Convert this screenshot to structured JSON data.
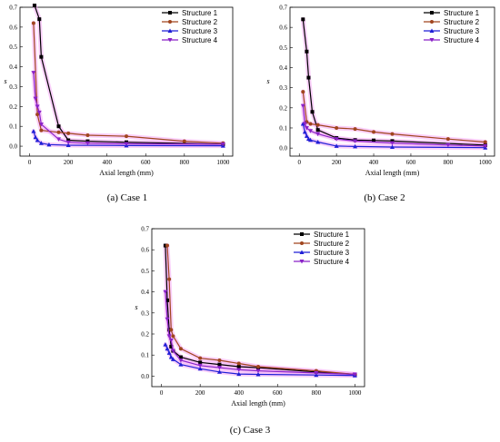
{
  "series_colors": [
    "#000000",
    "#a0451e",
    "#1f1fd6",
    "#8a22c8"
  ],
  "series_markers": [
    "square",
    "circle",
    "triangle-up",
    "triangle-down"
  ],
  "band_color": "#f6a8f6",
  "chart_data": [
    {
      "type": "line",
      "caption": "(a) Case 1",
      "xlabel": "Axial length (mm)",
      "ylabel": "s",
      "xlim": [
        -50,
        1050
      ],
      "ylim": [
        -0.05,
        0.7
      ],
      "xticks": [
        0,
        200,
        400,
        600,
        800,
        1000
      ],
      "yticks": [
        0.0,
        0.1,
        0.2,
        0.3,
        0.4,
        0.5,
        0.6,
        0.7
      ],
      "ytick_labels": [
        "0.0",
        "0.1",
        "0.2",
        "0.3",
        "0.4",
        "0.5",
        "0.6",
        "0.7"
      ],
      "legend_position": "top-right",
      "series": [
        {
          "name": "Structure 1",
          "x": [
            25,
            50,
            60,
            150,
            200,
            300,
            500,
            1000
          ],
          "y": [
            0.71,
            0.64,
            0.45,
            0.1,
            0.03,
            0.025,
            0.02,
            0.01
          ]
        },
        {
          "name": "Structure 2",
          "x": [
            20,
            40,
            60,
            150,
            200,
            300,
            500,
            800,
            1000
          ],
          "y": [
            0.62,
            0.16,
            0.08,
            0.07,
            0.065,
            0.055,
            0.05,
            0.025,
            0.015
          ]
        },
        {
          "name": "Structure 3",
          "x": [
            20,
            30,
            40,
            60,
            100,
            200,
            500,
            1000
          ],
          "y": [
            0.075,
            0.045,
            0.03,
            0.015,
            0.008,
            0.005,
            0.003,
            0.002
          ]
        },
        {
          "name": "Structure 4",
          "x": [
            20,
            30,
            40,
            50,
            60,
            150,
            200,
            300,
            500,
            1000
          ],
          "y": [
            0.37,
            0.24,
            0.2,
            0.17,
            0.11,
            0.035,
            0.02,
            0.015,
            0.012,
            0.01
          ]
        }
      ]
    },
    {
      "type": "line",
      "caption": "(b) Case 2",
      "xlabel": "Axial length (mm)",
      "ylabel": "s",
      "xlim": [
        -50,
        1050
      ],
      "ylim": [
        -0.04,
        0.7
      ],
      "xticks": [
        0,
        200,
        400,
        600,
        800,
        1000
      ],
      "yticks": [
        0.0,
        0.1,
        0.2,
        0.3,
        0.4,
        0.5,
        0.6,
        0.7
      ],
      "ytick_labels": [
        "0.0",
        "0.1",
        "0.2",
        "0.3",
        "0.4",
        "0.5",
        "0.6",
        "0.7"
      ],
      "legend_position": "top-right",
      "series": [
        {
          "name": "Structure 1",
          "x": [
            20,
            40,
            50,
            70,
            100,
            200,
            300,
            400,
            500,
            1000
          ],
          "y": [
            0.64,
            0.48,
            0.35,
            0.18,
            0.09,
            0.05,
            0.04,
            0.038,
            0.035,
            0.015
          ]
        },
        {
          "name": "Structure 2",
          "x": [
            20,
            40,
            60,
            100,
            200,
            300,
            400,
            500,
            800,
            1000
          ],
          "y": [
            0.28,
            0.13,
            0.12,
            0.115,
            0.1,
            0.095,
            0.08,
            0.07,
            0.045,
            0.03
          ]
        },
        {
          "name": "Structure 3",
          "x": [
            20,
            30,
            40,
            50,
            60,
            100,
            200,
            300,
            500,
            1000
          ],
          "y": [
            0.12,
            0.08,
            0.06,
            0.045,
            0.04,
            0.03,
            0.01,
            0.008,
            0.005,
            0.002
          ]
        },
        {
          "name": "Structure 4",
          "x": [
            20,
            30,
            40,
            60,
            100,
            200,
            300,
            500,
            800,
            1000
          ],
          "y": [
            0.21,
            0.12,
            0.1,
            0.085,
            0.07,
            0.045,
            0.035,
            0.025,
            0.015,
            0.01
          ]
        }
      ]
    },
    {
      "type": "line",
      "caption": "(c) Case 3",
      "xlabel": "Axial length (mm)",
      "ylabel": "s",
      "xlim": [
        -50,
        1050
      ],
      "ylim": [
        -0.05,
        0.7
      ],
      "xticks": [
        0,
        200,
        400,
        600,
        800,
        1000
      ],
      "yticks": [
        0.0,
        0.1,
        0.2,
        0.3,
        0.4,
        0.5,
        0.6,
        0.7
      ],
      "ytick_labels": [
        "0.0",
        "0.1",
        "0.2",
        "0.3",
        "0.4",
        "0.5",
        "0.6",
        "0.7"
      ],
      "legend_position": "top-right",
      "series": [
        {
          "name": "Structure 1",
          "x": [
            20,
            30,
            40,
            50,
            60,
            100,
            200,
            300,
            400,
            500,
            800,
            1000
          ],
          "y": [
            0.62,
            0.36,
            0.22,
            0.14,
            0.12,
            0.09,
            0.065,
            0.055,
            0.045,
            0.04,
            0.02,
            0.008
          ]
        },
        {
          "name": "Structure 2",
          "x": [
            30,
            40,
            50,
            60,
            100,
            200,
            300,
            400,
            500,
            800,
            1000
          ],
          "y": [
            0.62,
            0.46,
            0.22,
            0.19,
            0.13,
            0.085,
            0.075,
            0.06,
            0.045,
            0.025,
            0.008
          ]
        },
        {
          "name": "Structure 3",
          "x": [
            20,
            30,
            40,
            50,
            60,
            100,
            200,
            300,
            400,
            500,
            800,
            1000
          ],
          "y": [
            0.15,
            0.13,
            0.11,
            0.09,
            0.08,
            0.055,
            0.035,
            0.02,
            0.01,
            0.008,
            0.005,
            0.003
          ]
        },
        {
          "name": "Structure 4",
          "x": [
            20,
            30,
            40,
            50,
            60,
            100,
            200,
            300,
            400,
            500,
            800,
            1000
          ],
          "y": [
            0.4,
            0.27,
            0.19,
            0.17,
            0.12,
            0.075,
            0.05,
            0.04,
            0.03,
            0.025,
            0.015,
            0.008
          ]
        }
      ]
    }
  ]
}
